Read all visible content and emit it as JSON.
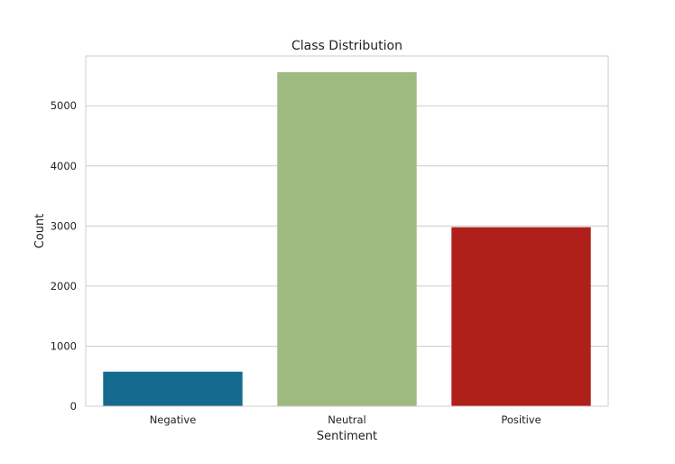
{
  "chart_data": {
    "type": "bar",
    "title": "Class Distribution",
    "xlabel": "Sentiment",
    "ylabel": "Count",
    "categories": [
      "Negative",
      "Neutral",
      "Positive"
    ],
    "values": [
      575,
      5560,
      2980
    ],
    "colors": [
      "#156a8f",
      "#9eba80",
      "#b0201b"
    ],
    "ylim": [
      0,
      5830
    ],
    "yticks": [
      0,
      1000,
      2000,
      3000,
      4000,
      5000
    ],
    "ytick_labels": [
      "0",
      "1000",
      "2000",
      "3000",
      "4000",
      "5000"
    ],
    "grid": true,
    "legend": "none"
  }
}
